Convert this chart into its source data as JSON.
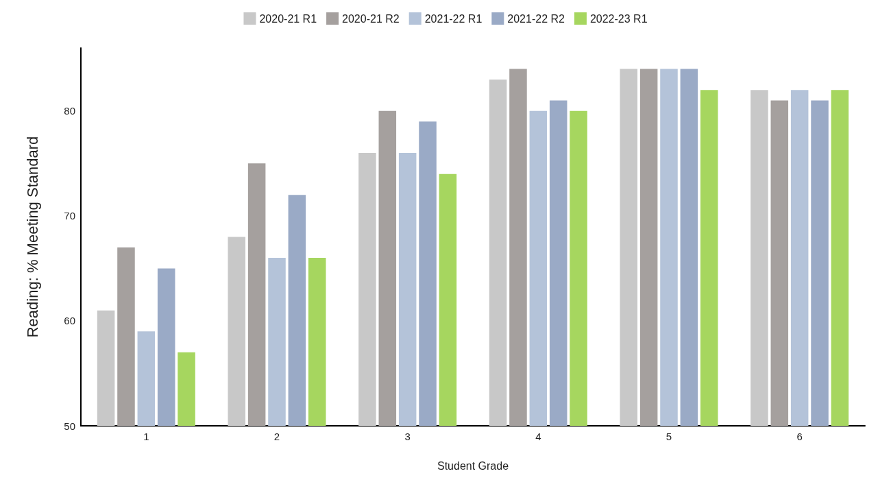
{
  "chart_data": {
    "type": "bar",
    "xlabel": "Student Grade",
    "ylabel": "Reading: % Meeting Standard",
    "categories": [
      "1",
      "2",
      "3",
      "4",
      "5",
      "6"
    ],
    "series": [
      {
        "name": "2020-21 R1",
        "color": "#c8c8c8",
        "values": [
          61,
          68,
          76,
          83,
          84,
          82
        ]
      },
      {
        "name": "2020-21 R2",
        "color": "#a5a09e",
        "values": [
          67,
          75,
          80,
          84,
          84,
          81
        ]
      },
      {
        "name": "2021-22 R1",
        "color": "#b4c3d9",
        "values": [
          59,
          66,
          76,
          80,
          84,
          82
        ]
      },
      {
        "name": "2021-22 R2",
        "color": "#9aaac6",
        "values": [
          65,
          72,
          79,
          81,
          84,
          81
        ]
      },
      {
        "name": "2022-23 R1",
        "color": "#a6d65f",
        "values": [
          57,
          66,
          74,
          80,
          82,
          82
        ]
      }
    ],
    "ylim": [
      50,
      86
    ],
    "yticks": [
      50,
      60,
      70,
      80
    ],
    "grid": false,
    "legend": "top"
  }
}
